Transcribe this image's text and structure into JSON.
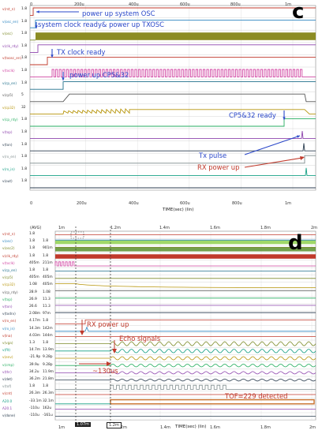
{
  "panel_c": {
    "letter": "c",
    "axis_title": "TIME(sec) (lin)",
    "top_ticks": [
      "0",
      "200u",
      "400u",
      "600u",
      "800u",
      "1m"
    ],
    "bottom_ticks": [
      "0",
      "200u",
      "400u",
      "600u",
      "800u",
      "1m"
    ],
    "annotations": {
      "osc": "power up system OSC",
      "clock": "system clock ready& power up TXOSC",
      "tx_clock": "TX clock ready",
      "cp": "power up CP5&32",
      "cp_ready": "CP5&32 ready",
      "tx_pulse": "Tx pulse",
      "rx": "RX power up"
    },
    "signals": [
      {
        "name": "v(rst_n)",
        "color": "#c0392b",
        "scale": "1.8"
      },
      {
        "name": "v(osc_en)",
        "color": "#2e86c1",
        "scale": "1.8"
      },
      {
        "name": "v(osc)",
        "color": "#7d8b2a",
        "scale": "1.8"
      },
      {
        "name": "v(clk_rdy)",
        "color": "#8e44ad",
        "scale": "1.8"
      },
      {
        "name": "v(txosc_en)",
        "color": "#c0392b",
        "scale": "1.8"
      },
      {
        "name": "v(txclk)",
        "color": "#d147a3",
        "scale": "1.8"
      },
      {
        "name": "v(cp_en)",
        "color": "#1f6f8b",
        "scale": "1.8"
      },
      {
        "name": "v(cp5)",
        "color": "#555555",
        "scale": "5"
      },
      {
        "name": "v(cp32)",
        "color": "#b7950b",
        "scale": "32"
      },
      {
        "name": "v(cp_rdy)",
        "color": "#27ae60",
        "scale": "1.8"
      },
      {
        "name": "v(txp)",
        "color": "#8e44ad",
        "scale": "1.8"
      },
      {
        "name": "v(txn)",
        "color": "#2c3e50",
        "scale": "1.8"
      },
      {
        "name": "v(rx_en)",
        "color": "#7f8c8d",
        "scale": "1.8"
      },
      {
        "name": "v(rx_in)",
        "color": "#16a085",
        "scale": "1.8"
      },
      {
        "name": "v(out)",
        "color": "#2c3e50",
        "scale": "1.8"
      }
    ]
  },
  "panel_d": {
    "letter": "d",
    "axis_title": "TIME(sec) (lin)",
    "column_header": "(AVG)",
    "top_ticks": [
      "1m",
      "1.2m",
      "1.4m",
      "1.6m",
      "1.8m",
      "2m"
    ],
    "bottom_ticks": [
      "1m",
      "1.2m",
      "1.4m",
      "1.6m",
      "1.8m",
      "2m"
    ],
    "cursor_labels": {
      "left": "1.07m",
      "right": "1.2m"
    },
    "annotations": {
      "rx": "RX power up",
      "echo": "Echo signals",
      "delay": "~130us",
      "tof": "TOF=229 detected"
    },
    "signals": [
      {
        "name": "v(rst_n)",
        "color": "#c0392b",
        "v1": "1.8",
        "v2": ""
      },
      {
        "name": "v(osc)",
        "color": "#2e86c1",
        "v1": "1.8",
        "v2": "1.8"
      },
      {
        "name": "v(osc2)",
        "color": "#7d8b2a",
        "v1": "1.8",
        "v2": "901m"
      },
      {
        "name": "v(clk_rdy)",
        "color": "#c0392b",
        "v1": "1.8",
        "v2": "1.8"
      },
      {
        "name": "v(txclk)",
        "color": "#d147a3",
        "v1": "405m",
        "v2": "211m"
      },
      {
        "name": "v(cp_en)",
        "color": "#1f6f8b",
        "v1": "1.8",
        "v2": "1.8"
      },
      {
        "name": "v(cp5)",
        "color": "#7d8b2a",
        "v1": "405m",
        "v2": "405m"
      },
      {
        "name": "v(cp32)",
        "color": "#b7950b",
        "v1": "1.08",
        "v2": "405m"
      },
      {
        "name": "v(cp_rdy)",
        "color": "#555555",
        "v1": "28.9",
        "v2": "1.08"
      },
      {
        "name": "v(txp)",
        "color": "#27ae60",
        "v1": "26.9",
        "v2": "11.3"
      },
      {
        "name": "v(txn)",
        "color": "#8e44ad",
        "v1": "26.6",
        "v2": "11.3"
      },
      {
        "name": "v(txdrv)",
        "color": "#2c3e50",
        "v1": "2.08m",
        "v2": "97m"
      },
      {
        "name": "v(rx_en)",
        "color": "#c0392b",
        "v1": "4.17m",
        "v2": "1.8"
      },
      {
        "name": "v(rx_in)",
        "color": "#2e86c1",
        "v1": "14.3m",
        "v2": "142m"
      },
      {
        "name": "v(lna)",
        "color": "#c0392b",
        "v1": "4.03m",
        "v2": "144m"
      },
      {
        "name": "v(vga)",
        "color": "#7d8b2a",
        "v1": "1.3",
        "v2": "1.8"
      },
      {
        "name": "v(flt)",
        "color": "#16a085",
        "v1": "14.7m",
        "v2": "13.9m"
      },
      {
        "name": "v(env)",
        "color": "#b7950b",
        "v1": "-21.9p",
        "v2": "9.28p"
      },
      {
        "name": "v(cmp)",
        "color": "#27ae60",
        "v1": "39.9u",
        "v2": "9.28p"
      },
      {
        "name": "v(thr)",
        "color": "#8e44ad",
        "v1": "34.2u",
        "v2": "11.9m"
      },
      {
        "name": "v(det)",
        "color": "#2c3e50",
        "v1": "36.2m",
        "v2": "21.8m"
      },
      {
        "name": "v(tof)",
        "color": "#7f8c8d",
        "v1": "1.8",
        "v2": "1.8"
      },
      {
        "name": "v(cnt)",
        "color": "#c0392b",
        "v1": "26.3m",
        "v2": "26.3m"
      },
      {
        "name": "A20.0",
        "color": "#16a085",
        "v1": "-33.1m",
        "v2": "32.1m"
      },
      {
        "name": "A20.1",
        "color": "#8e44ad",
        "v1": "-110u",
        "v2": "162u"
      },
      {
        "name": "v(done)",
        "color": "#2c3e50",
        "v1": "-110u",
        "v2": "-161u"
      }
    ]
  }
}
